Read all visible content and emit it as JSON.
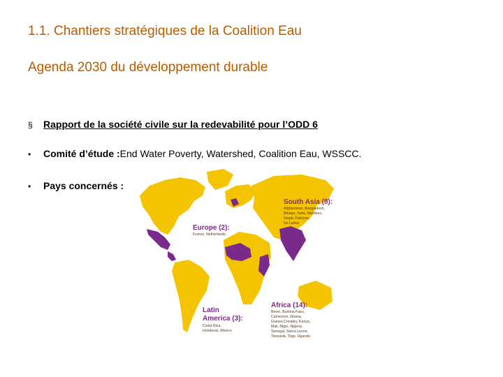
{
  "title": "1.1. Chantiers stratégiques de la Coalition Eau",
  "subtitle": "Agenda 2030 du développement durable",
  "bullets": {
    "square_mark": "§",
    "dot_mark": "•",
    "report": "Rapport de la société civile sur la redevabilité pour l’ODD 6",
    "committee_label": "Comité d’étude :",
    "committee_value": " End Water Poverty, Watershed, Coalition Eau, WSSCC.",
    "countries_label": "Pays concernés :"
  },
  "map": {
    "colors": {
      "base": "#f5c400",
      "highlight": "#7a2a8a",
      "sea": "#ffffff"
    },
    "south_asia": {
      "title": "South Asia (8):",
      "line1": "Afghanistan, Bangladesh,",
      "line2": "Bhutan, India, Maldives,",
      "line3": "Nepal, Pakistan,",
      "line4": "Sri Lanka"
    },
    "europe": {
      "title": "Europe (2):",
      "line1": "France, Netherlands"
    },
    "latin_america": {
      "title1": "Latin",
      "title2": "America (3):",
      "line1": "Costa Rica,",
      "line2": "Honduras, Mexico"
    },
    "africa": {
      "title": "Africa (14):",
      "line1": "Benin, Burkina Faso,",
      "line2": "Cameroon, Ghana,",
      "line3": "Guinea Conakry, Kenya,",
      "line4": "Mali, Niger, Nigeria,",
      "line5": "Senegal, Sierra Leone,",
      "line6": "Tanzania, Togo, Uganda"
    }
  }
}
